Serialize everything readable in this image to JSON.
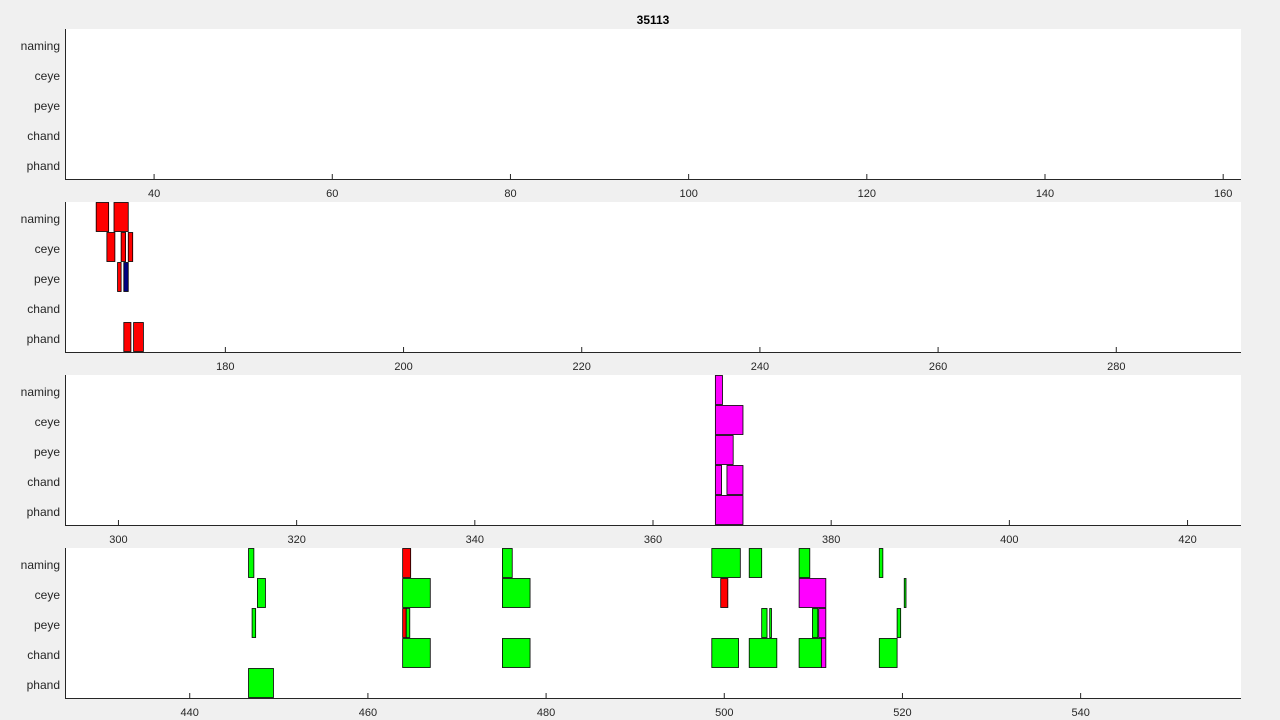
{
  "chart_data": {
    "type": "timeline",
    "title": "35113",
    "rows": [
      "naming",
      "ceye",
      "peye",
      "chand",
      "phand"
    ],
    "panels": [
      {
        "xlim": [
          30,
          162
        ],
        "ticks": [
          40,
          60,
          80,
          100,
          120,
          140,
          160
        ],
        "segments": []
      },
      {
        "xlim": [
          162,
          294
        ],
        "ticks": [
          180,
          200,
          220,
          240,
          260,
          280
        ],
        "segments": [
          {
            "row": "naming",
            "x0": 165.5,
            "x1": 166.9,
            "color": "#ff0000"
          },
          {
            "row": "naming",
            "x0": 167.5,
            "x1": 169.1,
            "color": "#ff0000"
          },
          {
            "row": "ceye",
            "x0": 166.7,
            "x1": 167.6,
            "color": "#ff0000"
          },
          {
            "row": "ceye",
            "x0": 168.3,
            "x1": 168.8,
            "color": "#ff0000"
          },
          {
            "row": "ceye",
            "x0": 169.1,
            "x1": 169.6,
            "color": "#ff0000"
          },
          {
            "row": "peye",
            "x0": 167.9,
            "x1": 168.3,
            "color": "#ff0000"
          },
          {
            "row": "peye",
            "x0": 168.6,
            "x1": 169.1,
            "color": "#000080"
          },
          {
            "row": "phand",
            "x0": 168.6,
            "x1": 169.4,
            "color": "#ff0000"
          },
          {
            "row": "phand",
            "x0": 169.7,
            "x1": 170.8,
            "color": "#ff0000"
          }
        ]
      },
      {
        "xlim": [
          294,
          426
        ],
        "ticks": [
          300,
          320,
          340,
          360,
          380,
          400,
          420
        ],
        "segments": [
          {
            "row": "naming",
            "x0": 367.0,
            "x1": 367.8,
            "color": "#ff00ff"
          },
          {
            "row": "ceye",
            "x0": 367.0,
            "x1": 370.1,
            "color": "#ff00ff"
          },
          {
            "row": "peye",
            "x0": 367.0,
            "x1": 369.0,
            "color": "#ff00ff"
          },
          {
            "row": "chand",
            "x0": 367.0,
            "x1": 367.7,
            "color": "#ff00ff"
          },
          {
            "row": "chand",
            "x0": 368.3,
            "x1": 370.1,
            "color": "#ff00ff"
          },
          {
            "row": "phand",
            "x0": 367.0,
            "x1": 370.1,
            "color": "#ff00ff"
          }
        ]
      },
      {
        "xlim": [
          426,
          558
        ],
        "ticks": [
          440,
          460,
          480,
          500,
          520,
          540
        ],
        "segments": [
          {
            "row": "naming",
            "x0": 446.6,
            "x1": 447.2,
            "color": "#00ff00"
          },
          {
            "row": "naming",
            "x0": 463.9,
            "x1": 464.8,
            "color": "#ff0000"
          },
          {
            "row": "naming",
            "x0": 475.1,
            "x1": 476.2,
            "color": "#00ff00"
          },
          {
            "row": "naming",
            "x0": 498.6,
            "x1": 501.8,
            "color": "#00ff00"
          },
          {
            "row": "naming",
            "x0": 502.8,
            "x1": 504.2,
            "color": "#00ff00"
          },
          {
            "row": "naming",
            "x0": 508.4,
            "x1": 509.6,
            "color": "#00ff00"
          },
          {
            "row": "naming",
            "x0": 517.4,
            "x1": 517.8,
            "color": "#00ff00"
          },
          {
            "row": "ceye",
            "x0": 447.6,
            "x1": 448.5,
            "color": "#00ff00"
          },
          {
            "row": "ceye",
            "x0": 463.9,
            "x1": 467.0,
            "color": "#00ff00"
          },
          {
            "row": "ceye",
            "x0": 475.1,
            "x1": 478.2,
            "color": "#00ff00"
          },
          {
            "row": "ceye",
            "x0": 499.6,
            "x1": 500.4,
            "color": "#ff0000"
          },
          {
            "row": "ceye",
            "x0": 508.4,
            "x1": 511.4,
            "color": "#ff00ff"
          },
          {
            "row": "ceye",
            "x0": 520.2,
            "x1": 520.4,
            "color": "#00ff00"
          },
          {
            "row": "peye",
            "x0": 447.0,
            "x1": 447.4,
            "color": "#00ff00"
          },
          {
            "row": "peye",
            "x0": 463.9,
            "x1": 464.3,
            "color": "#ff0000"
          },
          {
            "row": "peye",
            "x0": 464.3,
            "x1": 464.7,
            "color": "#00ff00"
          },
          {
            "row": "peye",
            "x0": 504.2,
            "x1": 504.8,
            "color": "#00ff00"
          },
          {
            "row": "peye",
            "x0": 505.1,
            "x1": 505.3,
            "color": "#00ff00"
          },
          {
            "row": "peye",
            "x0": 509.9,
            "x1": 510.5,
            "color": "#00ff00"
          },
          {
            "row": "peye",
            "x0": 510.6,
            "x1": 511.4,
            "color": "#ff00ff"
          },
          {
            "row": "peye",
            "x0": 519.4,
            "x1": 519.8,
            "color": "#00ff00"
          },
          {
            "row": "chand",
            "x0": 463.9,
            "x1": 467.0,
            "color": "#00ff00"
          },
          {
            "row": "chand",
            "x0": 475.1,
            "x1": 478.2,
            "color": "#00ff00"
          },
          {
            "row": "chand",
            "x0": 498.6,
            "x1": 501.6,
            "color": "#00ff00"
          },
          {
            "row": "chand",
            "x0": 502.8,
            "x1": 505.9,
            "color": "#00ff00"
          },
          {
            "row": "chand",
            "x0": 508.4,
            "x1": 510.9,
            "color": "#00ff00"
          },
          {
            "row": "chand",
            "x0": 510.9,
            "x1": 511.4,
            "color": "#ff00ff"
          },
          {
            "row": "chand",
            "x0": 517.4,
            "x1": 519.4,
            "color": "#00ff00"
          },
          {
            "row": "phand",
            "x0": 446.6,
            "x1": 449.4,
            "color": "#00ff00"
          }
        ]
      }
    ]
  }
}
